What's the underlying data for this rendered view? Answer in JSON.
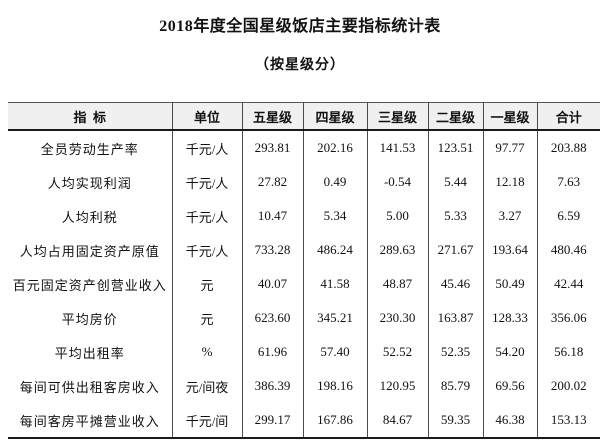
{
  "title": "2018年度全国星级饭店主要指标统计表",
  "subtitle": "（按星级分）",
  "colors": {
    "header_bg": "#f0f0f0",
    "rule_dark": "#1a1a1a",
    "rule_mid": "#4a4a4a",
    "rule_light": "#555555",
    "text": "#111111"
  },
  "table": {
    "headers": [
      "指  标",
      "单位",
      "五星级",
      "四星级",
      "三星级",
      "二星级",
      "一星级",
      "合计"
    ],
    "rows": [
      {
        "indicator": "全员劳动生产率",
        "unit": "千元/人",
        "values": [
          "293.81",
          "202.16",
          "141.53",
          "123.51",
          "97.77",
          "203.88"
        ]
      },
      {
        "indicator": "人均实现利润",
        "unit": "千元/人",
        "values": [
          "27.82",
          "0.49",
          "-0.54",
          "5.44",
          "12.18",
          "7.63"
        ]
      },
      {
        "indicator": "人均利税",
        "unit": "千元/人",
        "values": [
          "10.47",
          "5.34",
          "5.00",
          "5.33",
          "3.27",
          "6.59"
        ]
      },
      {
        "indicator": "人均占用固定资产原值",
        "unit": "千元/人",
        "values": [
          "733.28",
          "486.24",
          "289.63",
          "271.67",
          "193.64",
          "480.46"
        ]
      },
      {
        "indicator": "百元固定资产创营业收入",
        "unit": "元",
        "values": [
          "40.07",
          "41.58",
          "48.87",
          "45.46",
          "50.49",
          "42.44"
        ]
      },
      {
        "indicator": "平均房价",
        "unit": "元",
        "values": [
          "623.60",
          "345.21",
          "230.30",
          "163.87",
          "128.33",
          "356.06"
        ]
      },
      {
        "indicator": "平均出租率",
        "unit": "%",
        "values": [
          "61.96",
          "57.40",
          "52.52",
          "52.35",
          "54.20",
          "56.18"
        ]
      },
      {
        "indicator": "每间可供出租客房收入",
        "unit": "元/间夜",
        "values": [
          "386.39",
          "198.16",
          "120.95",
          "85.79",
          "69.56",
          "200.02"
        ]
      },
      {
        "indicator": "每间客房平摊营业收入",
        "unit": "千元/间",
        "values": [
          "299.17",
          "167.86",
          "84.67",
          "59.35",
          "46.38",
          "153.13"
        ]
      }
    ]
  }
}
